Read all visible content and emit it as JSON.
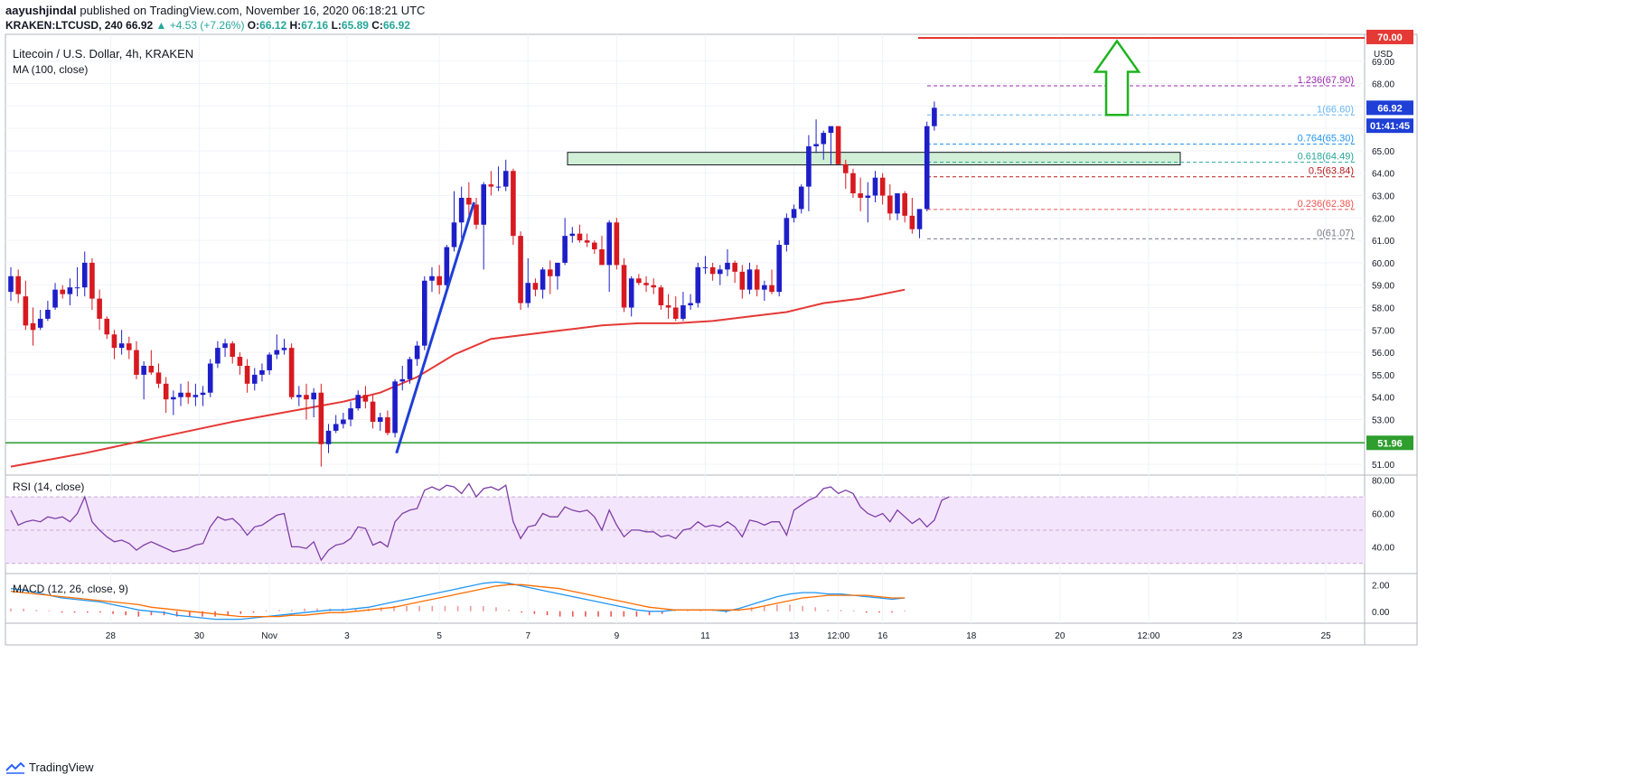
{
  "header": {
    "publisher": "aayushjindal",
    "published_text": "published on TradingView.com, November 16, 2020 06:18:21 UTC",
    "symbol": "KRAKEN:LTCUSD, 240",
    "last": "66.92",
    "change": "▲ +4.53 (+7.26%)",
    "o_label": "O:",
    "o": "66.12",
    "h_label": "H:",
    "h": "67.16",
    "l_label": "L:",
    "l": "65.89",
    "c_label": "C:",
    "c": "66.92"
  },
  "footer": {
    "brand": "TradingView"
  },
  "chart_data": [
    {
      "type": "candlestick",
      "title": "Litecoin / U.S. Dollar, 4h, KRAKEN",
      "indicator_label": "MA (100, close)",
      "currency": "USD",
      "ylim": [
        50.6,
        70.2
      ],
      "y_ticks": [
        "51.00",
        "52.00",
        "53.00",
        "54.00",
        "55.00",
        "56.00",
        "57.00",
        "58.00",
        "59.00",
        "60.00",
        "61.00",
        "62.00",
        "63.00",
        "64.00",
        "65.00",
        "66.00",
        "67.00",
        "68.00",
        "69.00"
      ],
      "x_ticks": [
        "28",
        "30",
        "Nov",
        "3",
        "5",
        "7",
        "9",
        "11",
        "13",
        "12:00",
        "16",
        "18",
        "20",
        "12:00",
        "23",
        "25"
      ],
      "support_level": "51.96",
      "price_badge": "66.92",
      "countdown_badge": "01:41:45",
      "resistance_badge": "70.00",
      "fib_levels": [
        {
          "ratio": "1.236",
          "value": "67.90",
          "label": "1.236(67.90)",
          "color": "#9c27b0"
        },
        {
          "ratio": "1",
          "value": "66.60",
          "label": "1(66.60)",
          "color": "#64b5f6"
        },
        {
          "ratio": "0.764",
          "value": "65.30",
          "label": "0.764(65.30)",
          "color": "#2196f3"
        },
        {
          "ratio": "0.618",
          "value": "64.49",
          "label": "0.618(64.49)",
          "color": "#26a69a"
        },
        {
          "ratio": "0.5",
          "value": "63.84",
          "label": "0.5(63.84)",
          "color": "#b71c1c"
        },
        {
          "ratio": "0.236",
          "value": "62.38",
          "label": "0.236(62.38)",
          "color": "#ef5350"
        },
        {
          "ratio": "0",
          "value": "61.07",
          "label": "0(61.07)",
          "color": "#787b86"
        }
      ],
      "resistance_zone": [
        64.37,
        64.93
      ],
      "trendline": [
        [
          52.2,
          51.5
        ],
        [
          62.7,
          62.7
        ]
      ],
      "candles": [
        [
          58.7,
          59.8,
          58.3,
          59.4
        ],
        [
          59.4,
          59.7,
          58.2,
          58.6
        ],
        [
          58.5,
          59.2,
          57.0,
          57.2
        ],
        [
          57.3,
          58.0,
          56.3,
          57.0
        ],
        [
          57.1,
          57.9,
          57.0,
          57.5
        ],
        [
          57.5,
          58.3,
          57.4,
          57.9
        ],
        [
          58.0,
          59.1,
          57.9,
          58.8
        ],
        [
          58.8,
          59.0,
          58.4,
          58.6
        ],
        [
          58.6,
          59.3,
          58.1,
          58.9
        ],
        [
          58.9,
          59.8,
          58.5,
          58.9
        ],
        [
          58.9,
          60.5,
          58.5,
          60.0
        ],
        [
          60.0,
          60.2,
          57.9,
          58.4
        ],
        [
          58.4,
          58.8,
          57.0,
          57.5
        ],
        [
          57.5,
          57.6,
          56.6,
          56.8
        ],
        [
          56.8,
          57.0,
          55.7,
          56.2
        ],
        [
          56.2,
          57.0,
          55.9,
          56.4
        ],
        [
          56.4,
          56.7,
          55.7,
          56.1
        ],
        [
          56.1,
          56.5,
          54.8,
          55.0
        ],
        [
          55.0,
          55.6,
          53.9,
          55.4
        ],
        [
          55.4,
          56.1,
          55.0,
          55.1
        ],
        [
          55.1,
          55.5,
          54.4,
          54.6
        ],
        [
          54.6,
          54.9,
          53.3,
          53.9
        ],
        [
          53.9,
          54.3,
          53.2,
          54.0
        ],
        [
          54.0,
          54.6,
          53.6,
          54.2
        ],
        [
          54.2,
          54.7,
          53.7,
          54.0
        ],
        [
          54.0,
          54.6,
          53.6,
          54.1
        ],
        [
          54.1,
          54.5,
          53.6,
          54.2
        ],
        [
          54.2,
          55.7,
          54.0,
          55.5
        ],
        [
          55.5,
          56.5,
          55.3,
          56.2
        ],
        [
          56.2,
          56.6,
          55.8,
          56.4
        ],
        [
          56.4,
          56.5,
          55.5,
          55.8
        ],
        [
          55.8,
          56.0,
          55.0,
          55.4
        ],
        [
          55.4,
          55.7,
          54.2,
          54.6
        ],
        [
          54.6,
          55.3,
          54.3,
          55.0
        ],
        [
          55.0,
          55.5,
          54.7,
          55.2
        ],
        [
          55.2,
          56.0,
          55.0,
          55.9
        ],
        [
          55.9,
          56.8,
          55.7,
          56.1
        ],
        [
          56.1,
          56.6,
          55.9,
          56.2
        ],
        [
          56.2,
          56.4,
          53.9,
          54.0
        ],
        [
          54.0,
          54.5,
          53.6,
          54.1
        ],
        [
          54.1,
          54.6,
          53.0,
          53.9
        ],
        [
          53.9,
          54.4,
          53.1,
          54.2
        ],
        [
          54.2,
          54.6,
          50.9,
          51.9
        ],
        [
          51.9,
          52.8,
          51.5,
          52.5
        ],
        [
          52.5,
          53.2,
          52.4,
          52.8
        ],
        [
          52.8,
          53.3,
          52.6,
          53.0
        ],
        [
          53.0,
          53.8,
          52.7,
          53.5
        ],
        [
          53.5,
          54.3,
          53.4,
          54.1
        ],
        [
          54.1,
          54.5,
          53.5,
          53.8
        ],
        [
          53.8,
          54.1,
          52.6,
          52.9
        ],
        [
          52.9,
          53.3,
          52.5,
          53.1
        ],
        [
          53.1,
          53.4,
          52.3,
          52.4
        ],
        [
          52.4,
          54.8,
          52.2,
          54.7
        ],
        [
          54.7,
          55.4,
          54.3,
          54.8
        ],
        [
          54.8,
          55.8,
          54.6,
          55.7
        ],
        [
          55.7,
          56.5,
          55.4,
          56.3
        ],
        [
          56.3,
          59.4,
          56.1,
          59.2
        ],
        [
          59.2,
          59.8,
          58.7,
          59.4
        ],
        [
          59.4,
          59.9,
          58.6,
          59.0
        ],
        [
          59.0,
          60.8,
          58.8,
          60.7
        ],
        [
          60.7,
          63.2,
          60.5,
          61.8
        ],
        [
          61.8,
          63.4,
          61.1,
          62.9
        ],
        [
          62.9,
          63.6,
          62.1,
          62.6
        ],
        [
          62.6,
          62.9,
          61.5,
          61.7
        ],
        [
          61.7,
          63.6,
          59.7,
          63.5
        ],
        [
          63.5,
          64.1,
          63.0,
          63.4
        ],
        [
          63.4,
          64.3,
          63.2,
          63.4
        ],
        [
          63.4,
          64.6,
          63.2,
          64.1
        ],
        [
          64.1,
          64.2,
          60.8,
          61.2
        ],
        [
          61.2,
          61.4,
          57.9,
          58.2
        ],
        [
          58.2,
          60.2,
          58.0,
          59.1
        ],
        [
          59.1,
          59.3,
          58.5,
          58.8
        ],
        [
          58.8,
          59.8,
          58.4,
          59.7
        ],
        [
          59.7,
          60.1,
          58.6,
          59.4
        ],
        [
          59.4,
          60.0,
          58.8,
          60.0
        ],
        [
          60.0,
          62.0,
          59.9,
          61.2
        ],
        [
          61.2,
          61.6,
          60.9,
          61.3
        ],
        [
          61.3,
          61.7,
          60.9,
          61.0
        ],
        [
          61.0,
          61.3,
          60.7,
          60.9
        ],
        [
          60.9,
          61.0,
          60.4,
          60.6
        ],
        [
          60.6,
          61.2,
          60.0,
          59.9
        ],
        [
          59.9,
          61.9,
          58.7,
          61.8
        ],
        [
          61.8,
          62.0,
          59.7,
          59.9
        ],
        [
          59.9,
          60.2,
          57.8,
          58.0
        ],
        [
          58.0,
          59.4,
          57.6,
          59.3
        ],
        [
          59.3,
          59.5,
          59.0,
          59.1
        ],
        [
          59.1,
          59.4,
          58.7,
          59.0
        ],
        [
          59.0,
          59.3,
          58.6,
          58.9
        ],
        [
          58.9,
          59.0,
          57.9,
          58.1
        ],
        [
          58.1,
          58.6,
          57.5,
          58.0
        ],
        [
          58.0,
          58.5,
          57.4,
          57.5
        ],
        [
          57.5,
          58.7,
          57.4,
          58.1
        ],
        [
          58.1,
          58.6,
          57.9,
          58.2
        ],
        [
          58.2,
          60.0,
          58.0,
          59.8
        ],
        [
          59.8,
          60.3,
          59.5,
          59.8
        ],
        [
          59.8,
          60.0,
          59.2,
          59.5
        ],
        [
          59.5,
          59.9,
          59.0,
          59.7
        ],
        [
          59.7,
          60.6,
          59.4,
          60.0
        ],
        [
          60.0,
          60.1,
          59.1,
          59.6
        ],
        [
          59.6,
          59.9,
          58.4,
          58.8
        ],
        [
          58.8,
          60.0,
          58.6,
          59.7
        ],
        [
          59.7,
          59.9,
          58.5,
          58.8
        ],
        [
          58.8,
          59.2,
          58.3,
          59.0
        ],
        [
          59.0,
          59.7,
          58.6,
          58.7
        ],
        [
          58.7,
          61.0,
          58.5,
          60.8
        ],
        [
          60.8,
          62.2,
          60.5,
          62.0
        ],
        [
          62.0,
          62.6,
          61.8,
          62.4
        ],
        [
          62.4,
          63.5,
          62.2,
          63.4
        ],
        [
          63.4,
          65.7,
          62.3,
          65.2
        ],
        [
          65.2,
          66.4,
          64.9,
          65.3
        ],
        [
          65.3,
          65.9,
          64.6,
          65.8
        ],
        [
          65.8,
          66.0,
          64.4,
          66.1
        ],
        [
          66.1,
          66.1,
          64.4,
          64.4
        ],
        [
          64.4,
          64.6,
          63.3,
          64.0
        ],
        [
          64.0,
          64.2,
          62.9,
          63.1
        ],
        [
          63.1,
          63.8,
          62.3,
          62.9
        ],
        [
          62.9,
          63.6,
          61.8,
          63.0
        ],
        [
          63.0,
          64.1,
          62.7,
          63.8
        ],
        [
          63.8,
          64.0,
          62.6,
          63.0
        ],
        [
          63.0,
          63.5,
          61.9,
          62.2
        ],
        [
          62.2,
          63.1,
          61.9,
          63.1
        ],
        [
          63.1,
          63.2,
          61.8,
          62.1
        ],
        [
          62.1,
          62.9,
          61.3,
          61.5
        ],
        [
          61.5,
          62.4,
          61.1,
          62.4
        ],
        [
          62.4,
          66.3,
          62.3,
          66.1
        ],
        [
          66.1,
          67.2,
          65.9,
          66.92
        ]
      ],
      "ma100": [
        [
          0,
          50.9
        ],
        [
          10,
          51.5
        ],
        [
          20,
          52.2
        ],
        [
          30,
          52.9
        ],
        [
          40,
          53.5
        ],
        [
          45,
          53.8
        ],
        [
          50,
          54.2
        ],
        [
          55,
          54.9
        ],
        [
          60,
          55.9
        ],
        [
          65,
          56.6
        ],
        [
          70,
          56.8
        ],
        [
          75,
          57.0
        ],
        [
          80,
          57.2
        ],
        [
          85,
          57.3
        ],
        [
          90,
          57.3
        ],
        [
          95,
          57.4
        ],
        [
          100,
          57.6
        ],
        [
          105,
          57.8
        ],
        [
          110,
          58.2
        ],
        [
          115,
          58.4
        ],
        [
          121,
          58.8
        ]
      ]
    },
    {
      "type": "line",
      "title": "RSI (14, close)",
      "ylim": [
        25,
        82
      ],
      "y_ticks": [
        "40.00",
        "60.00",
        "80.00"
      ],
      "band": [
        30,
        70
      ],
      "values": [
        62,
        53,
        55,
        56,
        55,
        58,
        57,
        58,
        55,
        60,
        70,
        55,
        50,
        46,
        43,
        44,
        42,
        38,
        41,
        43,
        41,
        39,
        37,
        38,
        39,
        41,
        42,
        52,
        58,
        56,
        57,
        53,
        47,
        52,
        53,
        56,
        59,
        60,
        40,
        40,
        39,
        43,
        32,
        38,
        41,
        42,
        45,
        52,
        51,
        41,
        43,
        40,
        55,
        60,
        62,
        63,
        74,
        76,
        74,
        77,
        76,
        72,
        78,
        70,
        75,
        76,
        74,
        77,
        55,
        45,
        52,
        53,
        60,
        58,
        58,
        64,
        62,
        61,
        62,
        58,
        50,
        62,
        53,
        46,
        50,
        50,
        49,
        49,
        46,
        47,
        45,
        50,
        51,
        55,
        52,
        53,
        52,
        55,
        52,
        46,
        56,
        55,
        53,
        55,
        55,
        47,
        62,
        65,
        68,
        70,
        75,
        76,
        72,
        74,
        72,
        64,
        60,
        58,
        60,
        55,
        62,
        58,
        54,
        57,
        52,
        56,
        68,
        70
      ]
    },
    {
      "type": "macd",
      "title": "MACD (12, 26, close, 9)",
      "ylim": [
        -0.9,
        2.7
      ],
      "y_ticks": [
        "0.00",
        "2.00"
      ],
      "macd": [
        1.7,
        1.6,
        1.4,
        1.2,
        1.0,
        0.9,
        0.8,
        0.7,
        0.5,
        0.3,
        0.1,
        0.0,
        -0.1,
        -0.3,
        -0.4,
        -0.5,
        -0.6,
        -0.6,
        -0.6,
        -0.5,
        -0.4,
        -0.3,
        -0.2,
        -0.1,
        0.0,
        0.1,
        0.1,
        0.2,
        0.3,
        0.5,
        0.7,
        0.9,
        1.1,
        1.3,
        1.5,
        1.7,
        1.9,
        2.1,
        2.2,
        2.1,
        1.9,
        1.7,
        1.5,
        1.3,
        1.1,
        0.9,
        0.7,
        0.5,
        0.3,
        0.1,
        0.0,
        0.0,
        0.1,
        0.1,
        0.1,
        0.1,
        0.0,
        0.2,
        0.5,
        0.8,
        1.1,
        1.3,
        1.4,
        1.4,
        1.3,
        1.3,
        1.2,
        1.1,
        1.0,
        0.9,
        1.0
      ],
      "signal": [
        1.5,
        1.4,
        1.3,
        1.2,
        1.1,
        1.0,
        0.9,
        0.8,
        0.7,
        0.6,
        0.5,
        0.3,
        0.2,
        0.1,
        0.0,
        -0.1,
        -0.2,
        -0.3,
        -0.4,
        -0.4,
        -0.4,
        -0.4,
        -0.3,
        -0.3,
        -0.2,
        -0.1,
        -0.1,
        0.0,
        0.1,
        0.2,
        0.3,
        0.5,
        0.7,
        0.9,
        1.1,
        1.3,
        1.5,
        1.7,
        1.9,
        2.0,
        2.0,
        1.9,
        1.8,
        1.7,
        1.5,
        1.3,
        1.1,
        0.9,
        0.7,
        0.5,
        0.3,
        0.2,
        0.1,
        0.1,
        0.1,
        0.1,
        0.1,
        0.1,
        0.2,
        0.4,
        0.6,
        0.8,
        1.0,
        1.1,
        1.2,
        1.2,
        1.2,
        1.2,
        1.1,
        1.0,
        1.0
      ]
    }
  ]
}
